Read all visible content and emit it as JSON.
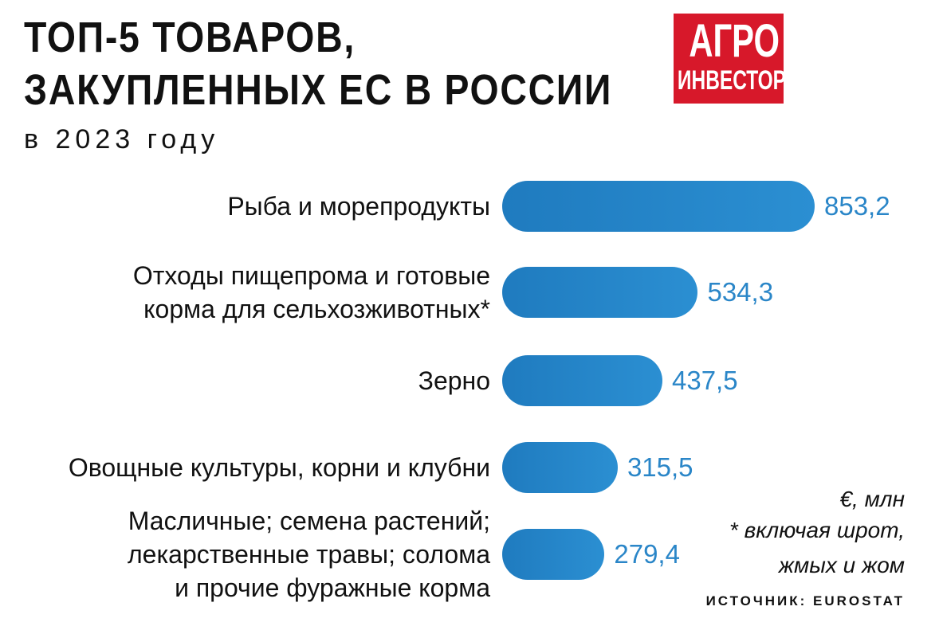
{
  "chart_data": {
    "type": "bar",
    "orientation": "horizontal",
    "title": "ТОП-5 ТОВАРОВ,\nЗАКУПЛЕННЫХ ЕС В РОССИИ",
    "subtitle": "в 2023 году",
    "logo": [
      "АГРО",
      "ИНВЕСТОР"
    ],
    "categories": [
      "Рыба и морепродукты",
      "Отходы пищепрома и готовые\nкорма для сельхозживотных*",
      "Зерно",
      "Овощные культуры, корни и клубни",
      "Масличные; семена растений;\nлекарственные травы; солома\nи прочие фуражные корма"
    ],
    "values": [
      853.2,
      534.3,
      437.5,
      315.5,
      279.4
    ],
    "value_labels": [
      "853,2",
      "534,3",
      "437,5",
      "315,5",
      "279,4"
    ],
    "color": "#1f7bbf",
    "unit": "€, млн",
    "footnote": "* включая шрот,\nжмых и жом",
    "source": "ИСТОЧНИК: EUROSTAT"
  }
}
